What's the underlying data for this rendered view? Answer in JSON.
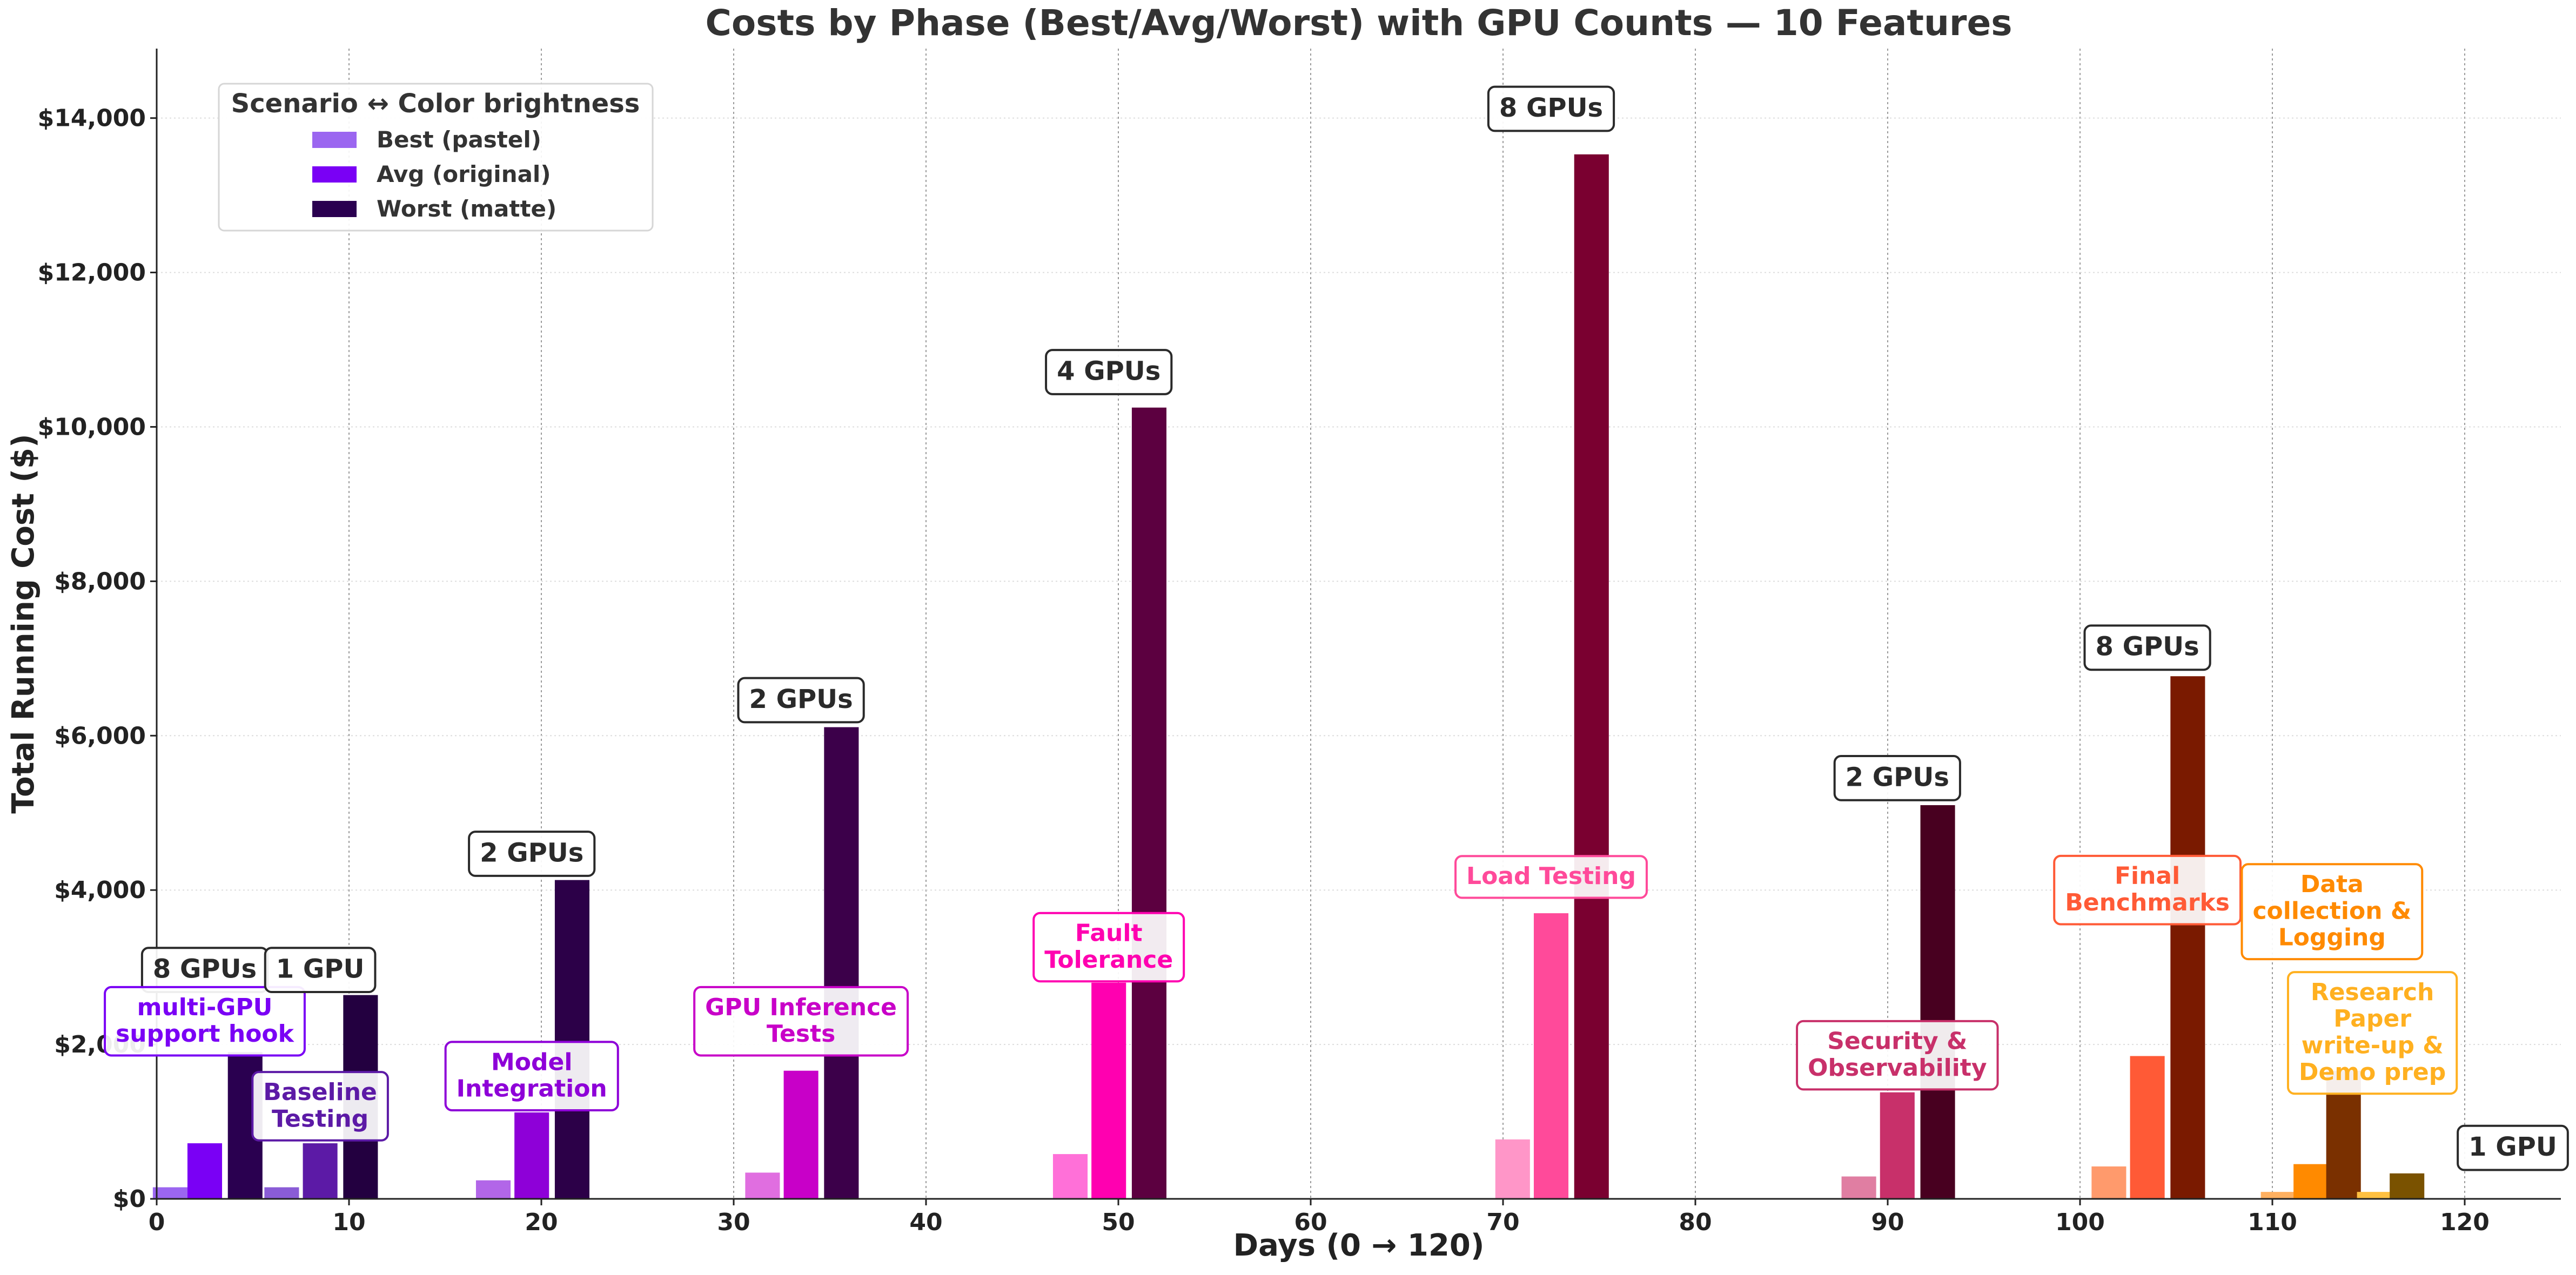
{
  "chart_data": {
    "type": "bar",
    "title": "Costs by Phase (Best/Avg/Worst) with GPU Counts — 10 Features",
    "xlabel": "Days (0 → 120)",
    "ylabel": "Total Running Cost ($)",
    "xlim": [
      0,
      125
    ],
    "ylim": [
      0,
      14900
    ],
    "x_ticks": [
      0,
      10,
      20,
      30,
      40,
      50,
      60,
      70,
      80,
      90,
      100,
      110,
      120
    ],
    "x_tick_labels": [
      "0",
      "10",
      "20",
      "30",
      "40",
      "50",
      "60",
      "70",
      "80",
      "90",
      "100",
      "110",
      "120"
    ],
    "y_ticks": [
      0,
      2000,
      4000,
      6000,
      8000,
      10000,
      12000,
      14000
    ],
    "y_tick_labels": [
      "$0",
      "$2,000",
      "$4,000",
      "$6,000",
      "$8,000",
      "$10,000",
      "$12,000",
      "$14,000"
    ],
    "grid": {
      "x": true,
      "y": true,
      "x_style": "dotted",
      "y_style": "dotted-faint"
    },
    "legend": {
      "title": "Scenario ↔ Color brightness",
      "position": "top-left",
      "entries": [
        {
          "label": "Best (pastel)",
          "color": "#9b66f0"
        },
        {
          "label": "Avg (original)",
          "color": "#7a00f5"
        },
        {
          "label": "Worst (matte)",
          "color": "#2a0050"
        }
      ]
    },
    "bar_width_days": 1.8,
    "series_names": [
      "Best",
      "Avg",
      "Worst"
    ],
    "features": [
      {
        "name": "multi-GPU support hook",
        "gpu_label": "8 GPUs",
        "x": [
          0.7,
          2.5,
          4.6
        ],
        "values": [
          150,
          720,
          1900
        ],
        "colors": [
          "#9b66f0",
          "#7a00f5",
          "#2a0050"
        ],
        "label_color": "#7a00f5",
        "name_at": [
          2.5,
          2300
        ],
        "gpu_at": [
          2.5,
          2965
        ]
      },
      {
        "name": "Baseline Testing",
        "gpu_label": "1 GPU",
        "x": [
          6.5,
          8.5,
          10.6
        ],
        "values": [
          150,
          720,
          2640
        ],
        "colors": [
          "#8a5cd6",
          "#5c1aa6",
          "#230040"
        ],
        "label_color": "#5c1aa6",
        "name_at": [
          8.5,
          1200
        ],
        "gpu_at": [
          8.5,
          2965
        ]
      },
      {
        "name": "Model Integration",
        "gpu_label": "2 GPUs",
        "x": [
          17.5,
          19.5,
          21.6
        ],
        "values": [
          240,
          1120,
          4130
        ],
        "colors": [
          "#b266e8",
          "#8e00d8",
          "#2c0048"
        ],
        "label_color": "#8e00d8",
        "name_at": [
          19.5,
          1590
        ],
        "gpu_at": [
          19.5,
          4470
        ]
      },
      {
        "name": "GPU Inference Tests",
        "gpu_label": "2 GPUs",
        "x": [
          31.5,
          33.5,
          35.6
        ],
        "values": [
          340,
          1660,
          6110
        ],
        "colors": [
          "#e06ee0",
          "#c800c8",
          "#3c004a"
        ],
        "label_color": "#c800c8",
        "name_at": [
          33.5,
          2300
        ],
        "gpu_at": [
          33.5,
          6460
        ]
      },
      {
        "name": "Fault Tolerance",
        "gpu_label": "4 GPUs",
        "x": [
          47.5,
          49.5,
          51.6
        ],
        "values": [
          580,
          2800,
          10250
        ],
        "colors": [
          "#ff70d8",
          "#ff00b0",
          "#5c0040"
        ],
        "label_color": "#ff00b0",
        "name_at": [
          49.5,
          3260
        ],
        "gpu_at": [
          49.5,
          10710
        ]
      },
      {
        "name": "Load Testing",
        "gpu_label": "8 GPUs",
        "x": [
          70.5,
          72.5,
          74.6
        ],
        "values": [
          770,
          3700,
          13530
        ],
        "colors": [
          "#ff96c8",
          "#ff4a9a",
          "#7a0030"
        ],
        "label_color": "#ff4a9a",
        "name_at": [
          72.5,
          4170
        ],
        "gpu_at": [
          72.5,
          14120
        ]
      },
      {
        "name": "Security & Observability",
        "gpu_label": "2 GPUs",
        "x": [
          88.5,
          90.5,
          92.6
        ],
        "values": [
          290,
          1380,
          5100
        ],
        "colors": [
          "#e07ea2",
          "#c8306a",
          "#480020"
        ],
        "label_color": "#c8306a",
        "name_at": [
          90.5,
          1860
        ],
        "gpu_at": [
          90.5,
          5450
        ]
      },
      {
        "name": "Final Benchmarks",
        "gpu_label": "8 GPUs",
        "x": [
          101.5,
          103.5,
          105.6
        ],
        "values": [
          420,
          1850,
          6770
        ],
        "colors": [
          "#ff9a6c",
          "#ff5a36",
          "#7a1a00"
        ],
        "label_color": "#ff5a36",
        "name_at": [
          103.5,
          4000
        ],
        "gpu_at": [
          103.5,
          7140
        ]
      },
      {
        "name": "Data collection & Logging",
        "gpu_label": "",
        "x": [
          110.3,
          112.0,
          113.7
        ],
        "values": [
          90,
          450,
          1660
        ],
        "colors": [
          "#ffb060",
          "#ff8a00",
          "#7a3000"
        ],
        "label_color": "#ff8a00",
        "name_at": [
          113.1,
          3720
        ],
        "gpu_at": null
      },
      {
        "name": "Research Paper write-up & Demo prep",
        "gpu_label": "1 GPU",
        "x": [
          115.3,
          117.0,
          117.1
        ],
        "values": [
          90,
          330,
          0
        ],
        "colors": [
          "#ffc040",
          "#7a5200",
          "#7a5200"
        ],
        "label_color": "#ffb020",
        "name_at": [
          115.2,
          2150
        ],
        "gpu_at": [
          122.5,
          660
        ]
      }
    ]
  }
}
